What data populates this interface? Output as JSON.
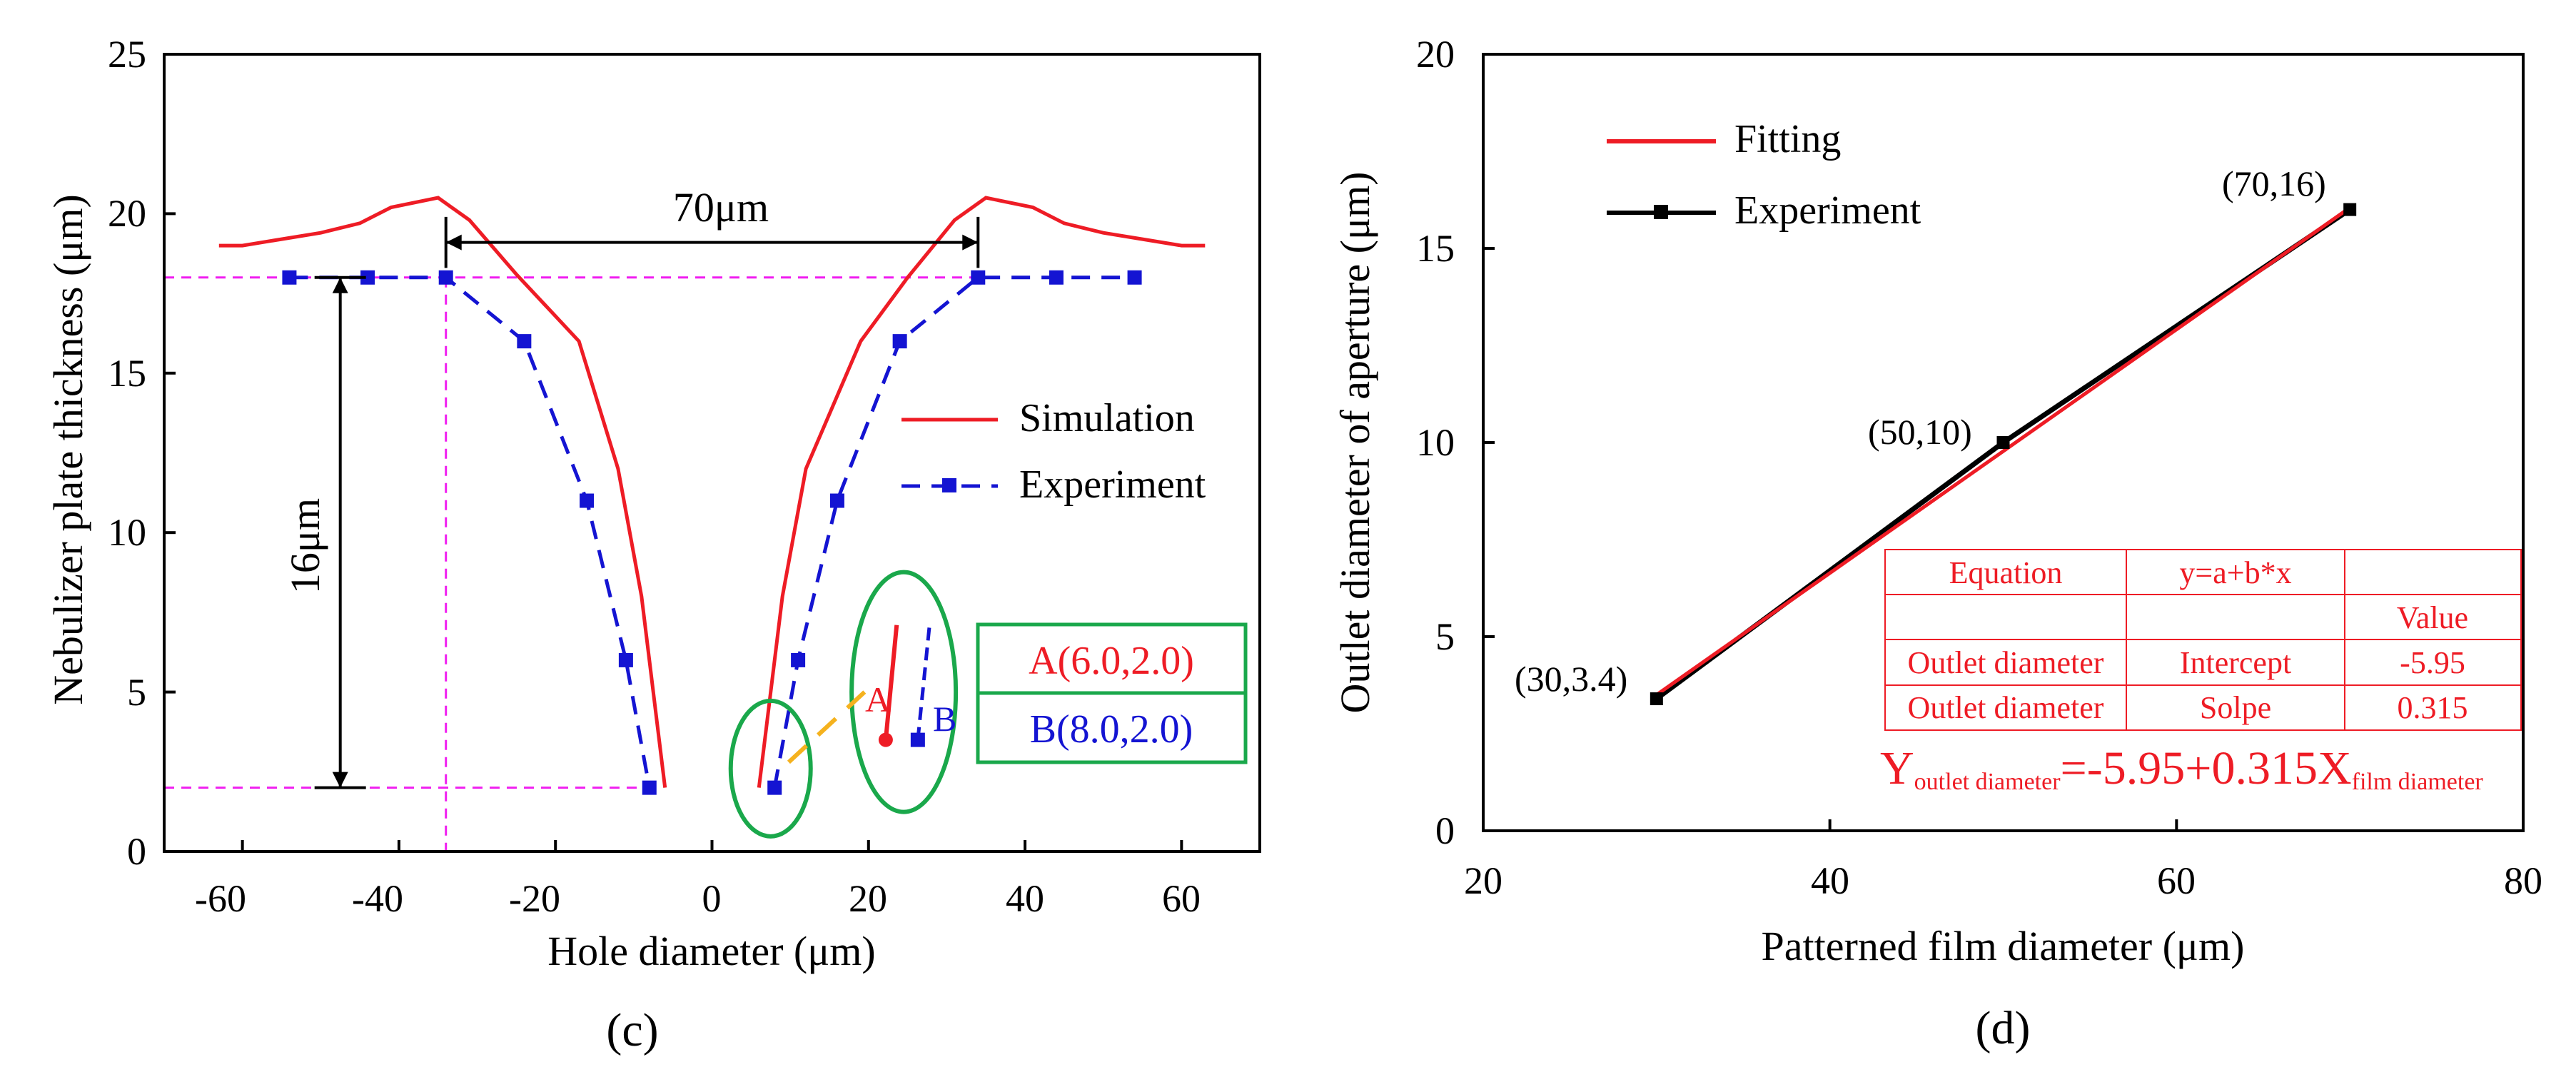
{
  "chart_data": [
    {
      "panel": "(c)",
      "type": "line",
      "xlabel": "Hole diameter (μm)",
      "ylabel": "Nebulizer plate thickness (μm)",
      "xlim": [
        -70,
        70
      ],
      "ylim": [
        0,
        25
      ],
      "xticks": [
        -60,
        -40,
        -20,
        0,
        20,
        40,
        60
      ],
      "yticks": [
        0,
        5,
        10,
        15,
        20,
        25
      ],
      "series": [
        {
          "name": "Simulation",
          "style": "solid",
          "color": "#ee1c25",
          "segments": [
            [
              [
                -63,
                19
              ],
              [
                -60,
                19
              ],
              [
                -55,
                19.2
              ],
              [
                -50,
                19.4
              ],
              [
                -45,
                19.7
              ],
              [
                -41,
                20.2
              ],
              [
                -35,
                20.5
              ],
              [
                -31,
                19.8
              ],
              [
                -25,
                18.1
              ],
              [
                -17,
                16
              ],
              [
                -12,
                12
              ],
              [
                -9,
                8
              ],
              [
                -6,
                2
              ]
            ],
            [
              [
                6,
                2
              ],
              [
                9,
                8
              ],
              [
                12,
                12
              ],
              [
                19,
                16
              ],
              [
                25,
                18
              ],
              [
                31,
                19.8
              ],
              [
                35,
                20.5
              ],
              [
                41,
                20.2
              ],
              [
                45,
                19.7
              ],
              [
                50,
                19.4
              ],
              [
                55,
                19.2
              ],
              [
                60,
                19
              ],
              [
                63,
                19
              ]
            ]
          ]
        },
        {
          "name": "Experiment",
          "style": "dashed",
          "color": "#1414d2",
          "segments": [
            [
              [
                -54,
                18
              ],
              [
                -44,
                18
              ],
              [
                -34,
                18
              ],
              [
                -24,
                16
              ],
              [
                -16,
                11
              ],
              [
                -11,
                6
              ],
              [
                -8,
                2
              ]
            ],
            [
              [
                8,
                2
              ],
              [
                11,
                6
              ],
              [
                16,
                11
              ],
              [
                24,
                16
              ],
              [
                34,
                18
              ],
              [
                44,
                18
              ],
              [
                54,
                18
              ]
            ]
          ]
        }
      ],
      "annotations": {
        "width_label": "70μm",
        "height_label": "16μm",
        "point_a_box": "A(6.0,2.0)",
        "point_b_box": "B(8.0,2.0)",
        "inset_a_label": "A",
        "inset_b_label": "B"
      },
      "legend": {
        "placement": "right",
        "entries": [
          "Simulation",
          "Experiment"
        ]
      }
    },
    {
      "panel": "(d)",
      "type": "line",
      "xlabel": "Patterned film diameter (μm)",
      "ylabel": "Outlet diameter of aperture (μm)",
      "xlim": [
        20,
        80
      ],
      "ylim": [
        0,
        20
      ],
      "xticks": [
        20,
        40,
        60,
        80
      ],
      "yticks": [
        0,
        5,
        10,
        15,
        20
      ],
      "series": [
        {
          "name": "Fitting",
          "color": "#ee1c25",
          "x": [
            30,
            70
          ],
          "y": [
            3.5,
            16.05
          ]
        },
        {
          "name": "Experiment",
          "color": "#000000",
          "x": [
            30,
            50,
            70
          ],
          "y": [
            3.4,
            10,
            16
          ]
        }
      ],
      "point_labels": [
        "(30,3.4)",
        "(50,10)",
        "(70,16)"
      ],
      "legend": {
        "placement": "top-left",
        "entries": [
          "Fitting",
          "Experiment"
        ]
      },
      "fit_table": {
        "rows": [
          [
            "Equation",
            "y=a+b*x",
            ""
          ],
          [
            "",
            "",
            "Value"
          ],
          [
            "Outlet diameter",
            "Intercept",
            "-5.95"
          ],
          [
            "Outlet diameter",
            "Solpe",
            "0.315"
          ]
        ]
      },
      "equation": {
        "y": "Y",
        "y_sub": "outlet diameter",
        "mid": "=-5.95+0.315X",
        "x_sub": "film diameter"
      }
    }
  ]
}
